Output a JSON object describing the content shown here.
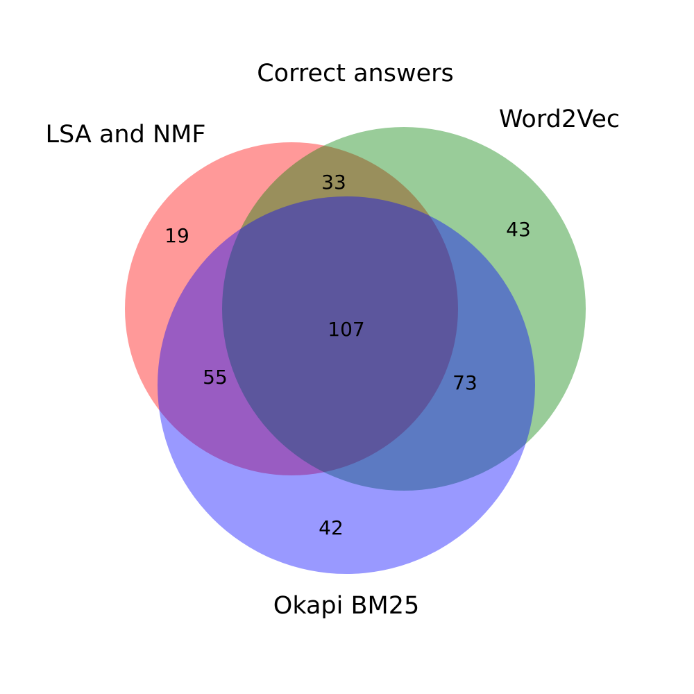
{
  "title": "Correct answers",
  "sets": [
    {
      "name": "LSA and NMF",
      "color": "#ff0000"
    },
    {
      "name": "Word2Vec",
      "color": "#008000"
    },
    {
      "name": "Okapi BM25",
      "color": "#0000ff"
    }
  ],
  "regions": {
    "lsa_only": "19",
    "word2vec_only": "43",
    "bm25_only": "42",
    "lsa_word2vec": "33",
    "lsa_bm25": "55",
    "word2vec_bm25": "73",
    "all_three": "107"
  }
}
